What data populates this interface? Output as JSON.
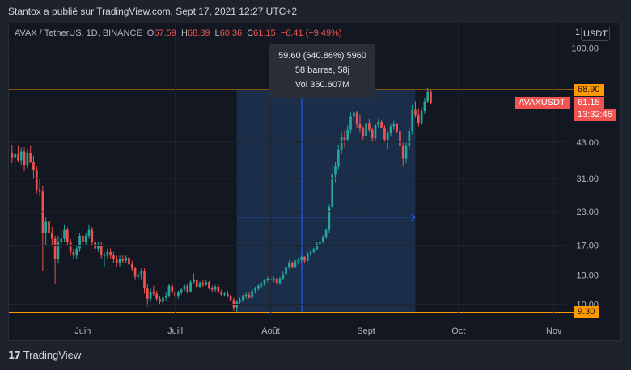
{
  "header": {
    "author_line": "Stantox a  publié sur TradingView.com, Sept 17, 2021 12:27 UTC+2"
  },
  "legend": {
    "symbol": "AVAX / TetherUS, 1D, BINANCE",
    "open_label": "O",
    "open": "67.59",
    "high_label": "H",
    "high": "68.89",
    "low_label": "L",
    "low": "60.36",
    "close_label": "C",
    "close": "61.15",
    "change": "−6.41 (−9.49%)"
  },
  "toolbar": {
    "one_label": "1",
    "currency_label": "USDT"
  },
  "measure_tooltip": {
    "line1": "59.60 (640.86%) 5960",
    "line2": "58 barres, 58j",
    "line3": "Vol 360.607M"
  },
  "price_tags": {
    "resistance": "68.90",
    "support": "9.30",
    "symbol_tag": "AVAXUSDT",
    "last_price": "61.15",
    "countdown": "13:32:46"
  },
  "footer": {
    "brand": "TradingView",
    "logo_icon": "tradingview-logo-icon"
  },
  "colors": {
    "background": "#131722",
    "up": "#26a69a",
    "down": "#ef5350",
    "level_line": "#ff9800",
    "measure_fill": "#1d3350",
    "measure_arrow": "#2962ff"
  },
  "chart_data": {
    "type": "candlestick",
    "y_scale": "log",
    "y_ticks": [
      100.0,
      68.9,
      43.0,
      31.0,
      23.0,
      17.0,
      13.0,
      10.0,
      9.3
    ],
    "y_tick_labels": [
      "100.00",
      "68.90",
      "43.00",
      "31.00",
      "23.00",
      "17.00",
      "13.00",
      "10.00",
      "9.30"
    ],
    "x_tick_labels": [
      "Juin",
      "Juill",
      "Août",
      "Sept",
      "Oct",
      "Nov"
    ],
    "x_tick_dates": [
      "2021-06-01",
      "2021-07-01",
      "2021-08-01",
      "2021-09-01",
      "2021-10-01",
      "2021-11-01"
    ],
    "x_range": [
      "2021-05-08",
      "2021-11-05"
    ],
    "y_range": [
      9.0,
      125.0
    ],
    "horizontal_levels": [
      68.9,
      9.3
    ],
    "measure": {
      "start": "2021-07-21",
      "end": "2021-09-17",
      "from_price": 9.3,
      "to_price": 68.9
    },
    "candles": [
      {
        "date": "2021-05-09",
        "o": 39.0,
        "h": 42.0,
        "l": 35.5,
        "c": 37.5
      },
      {
        "date": "2021-05-10",
        "o": 37.5,
        "h": 40.0,
        "l": 34.0,
        "c": 38.5
      },
      {
        "date": "2021-05-11",
        "o": 38.5,
        "h": 41.5,
        "l": 36.0,
        "c": 36.5
      },
      {
        "date": "2021-05-12",
        "o": 36.5,
        "h": 41.0,
        "l": 35.0,
        "c": 39.5
      },
      {
        "date": "2021-05-13",
        "o": 39.5,
        "h": 41.0,
        "l": 33.0,
        "c": 35.0
      },
      {
        "date": "2021-05-14",
        "o": 35.0,
        "h": 40.5,
        "l": 34.0,
        "c": 39.0
      },
      {
        "date": "2021-05-15",
        "o": 39.0,
        "h": 41.5,
        "l": 35.5,
        "c": 36.0
      },
      {
        "date": "2021-05-16",
        "o": 36.0,
        "h": 38.0,
        "l": 31.0,
        "c": 33.5
      },
      {
        "date": "2021-05-17",
        "o": 33.5,
        "h": 34.5,
        "l": 27.0,
        "c": 28.0
      },
      {
        "date": "2021-05-18",
        "o": 28.0,
        "h": 31.0,
        "l": 26.5,
        "c": 27.5
      },
      {
        "date": "2021-05-19",
        "o": 27.5,
        "h": 29.0,
        "l": 13.5,
        "c": 19.0
      },
      {
        "date": "2021-05-20",
        "o": 19.0,
        "h": 22.0,
        "l": 17.0,
        "c": 21.0
      },
      {
        "date": "2021-05-21",
        "o": 21.0,
        "h": 22.5,
        "l": 17.5,
        "c": 19.0
      },
      {
        "date": "2021-05-22",
        "o": 19.0,
        "h": 20.0,
        "l": 17.0,
        "c": 18.0
      },
      {
        "date": "2021-05-23",
        "o": 18.0,
        "h": 18.5,
        "l": 12.0,
        "c": 15.0
      },
      {
        "date": "2021-05-24",
        "o": 15.0,
        "h": 18.5,
        "l": 14.5,
        "c": 17.5
      },
      {
        "date": "2021-05-25",
        "o": 17.5,
        "h": 19.5,
        "l": 16.5,
        "c": 18.0
      },
      {
        "date": "2021-05-26",
        "o": 18.0,
        "h": 20.5,
        "l": 17.5,
        "c": 19.5
      },
      {
        "date": "2021-05-27",
        "o": 19.5,
        "h": 20.0,
        "l": 17.0,
        "c": 17.5
      },
      {
        "date": "2021-05-28",
        "o": 17.5,
        "h": 18.0,
        "l": 15.5,
        "c": 16.0
      },
      {
        "date": "2021-05-29",
        "o": 16.0,
        "h": 16.5,
        "l": 15.0,
        "c": 15.5
      },
      {
        "date": "2021-05-30",
        "o": 15.5,
        "h": 17.0,
        "l": 15.0,
        "c": 16.5
      },
      {
        "date": "2021-05-31",
        "o": 16.5,
        "h": 19.0,
        "l": 16.0,
        "c": 18.5
      },
      {
        "date": "2021-06-01",
        "o": 18.5,
        "h": 19.0,
        "l": 17.0,
        "c": 17.5
      },
      {
        "date": "2021-06-02",
        "o": 17.5,
        "h": 19.0,
        "l": 17.0,
        "c": 18.5
      },
      {
        "date": "2021-06-03",
        "o": 18.5,
        "h": 20.5,
        "l": 18.0,
        "c": 19.5
      },
      {
        "date": "2021-06-04",
        "o": 19.5,
        "h": 20.0,
        "l": 17.0,
        "c": 17.5
      },
      {
        "date": "2021-06-05",
        "o": 17.5,
        "h": 18.0,
        "l": 16.0,
        "c": 16.5
      },
      {
        "date": "2021-06-06",
        "o": 16.5,
        "h": 17.5,
        "l": 16.0,
        "c": 17.0
      },
      {
        "date": "2021-06-07",
        "o": 17.0,
        "h": 17.5,
        "l": 15.0,
        "c": 15.5
      },
      {
        "date": "2021-06-08",
        "o": 15.5,
        "h": 16.0,
        "l": 14.0,
        "c": 15.5
      },
      {
        "date": "2021-06-09",
        "o": 15.5,
        "h": 16.5,
        "l": 15.0,
        "c": 16.0
      },
      {
        "date": "2021-06-10",
        "o": 16.0,
        "h": 16.5,
        "l": 15.0,
        "c": 15.5
      },
      {
        "date": "2021-06-11",
        "o": 15.5,
        "h": 16.0,
        "l": 14.5,
        "c": 15.0
      },
      {
        "date": "2021-06-12",
        "o": 15.0,
        "h": 15.5,
        "l": 14.0,
        "c": 14.5
      },
      {
        "date": "2021-06-13",
        "o": 14.5,
        "h": 15.5,
        "l": 14.0,
        "c": 15.0
      },
      {
        "date": "2021-06-14",
        "o": 15.0,
        "h": 15.5,
        "l": 14.5,
        "c": 14.8
      },
      {
        "date": "2021-06-15",
        "o": 14.8,
        "h": 15.5,
        "l": 14.5,
        "c": 15.2
      },
      {
        "date": "2021-06-16",
        "o": 15.2,
        "h": 15.5,
        "l": 14.0,
        "c": 14.3
      },
      {
        "date": "2021-06-17",
        "o": 14.3,
        "h": 14.8,
        "l": 13.5,
        "c": 13.8
      },
      {
        "date": "2021-06-18",
        "o": 13.8,
        "h": 14.0,
        "l": 12.5,
        "c": 12.8
      },
      {
        "date": "2021-06-19",
        "o": 12.8,
        "h": 13.3,
        "l": 12.5,
        "c": 13.0
      },
      {
        "date": "2021-06-20",
        "o": 13.0,
        "h": 13.8,
        "l": 12.5,
        "c": 13.5
      },
      {
        "date": "2021-06-21",
        "o": 13.5,
        "h": 13.8,
        "l": 11.0,
        "c": 11.5
      },
      {
        "date": "2021-06-22",
        "o": 11.5,
        "h": 12.0,
        "l": 9.8,
        "c": 10.5
      },
      {
        "date": "2021-06-23",
        "o": 10.5,
        "h": 11.5,
        "l": 10.2,
        "c": 11.2
      },
      {
        "date": "2021-06-24",
        "o": 11.2,
        "h": 11.8,
        "l": 10.8,
        "c": 11.0
      },
      {
        "date": "2021-06-25",
        "o": 11.0,
        "h": 11.3,
        "l": 10.3,
        "c": 10.5
      },
      {
        "date": "2021-06-26",
        "o": 10.5,
        "h": 10.8,
        "l": 10.0,
        "c": 10.2
      },
      {
        "date": "2021-06-27",
        "o": 10.2,
        "h": 10.8,
        "l": 10.0,
        "c": 10.6
      },
      {
        "date": "2021-06-28",
        "o": 10.6,
        "h": 11.2,
        "l": 10.3,
        "c": 10.8
      },
      {
        "date": "2021-06-29",
        "o": 10.8,
        "h": 12.0,
        "l": 10.6,
        "c": 11.8
      },
      {
        "date": "2021-06-30",
        "o": 11.8,
        "h": 12.2,
        "l": 10.9,
        "c": 11.2
      },
      {
        "date": "2021-07-01",
        "o": 11.2,
        "h": 11.5,
        "l": 10.5,
        "c": 10.7
      },
      {
        "date": "2021-07-02",
        "o": 10.7,
        "h": 11.3,
        "l": 10.5,
        "c": 11.1
      },
      {
        "date": "2021-07-03",
        "o": 11.1,
        "h": 11.6,
        "l": 10.9,
        "c": 11.4
      },
      {
        "date": "2021-07-04",
        "o": 11.4,
        "h": 12.0,
        "l": 11.2,
        "c": 11.8
      },
      {
        "date": "2021-07-05",
        "o": 11.8,
        "h": 12.0,
        "l": 11.0,
        "c": 11.2
      },
      {
        "date": "2021-07-06",
        "o": 11.2,
        "h": 12.5,
        "l": 11.1,
        "c": 12.2
      },
      {
        "date": "2021-07-07",
        "o": 12.2,
        "h": 13.2,
        "l": 12.0,
        "c": 12.4
      },
      {
        "date": "2021-07-08",
        "o": 12.4,
        "h": 12.5,
        "l": 11.5,
        "c": 11.7
      },
      {
        "date": "2021-07-09",
        "o": 11.7,
        "h": 12.3,
        "l": 11.5,
        "c": 12.1
      },
      {
        "date": "2021-07-10",
        "o": 12.1,
        "h": 12.5,
        "l": 11.7,
        "c": 11.9
      },
      {
        "date": "2021-07-11",
        "o": 11.9,
        "h": 12.4,
        "l": 11.8,
        "c": 12.2
      },
      {
        "date": "2021-07-12",
        "o": 12.2,
        "h": 12.3,
        "l": 11.4,
        "c": 11.6
      },
      {
        "date": "2021-07-13",
        "o": 11.6,
        "h": 11.8,
        "l": 11.2,
        "c": 11.4
      },
      {
        "date": "2021-07-14",
        "o": 11.4,
        "h": 11.9,
        "l": 11.1,
        "c": 11.7
      },
      {
        "date": "2021-07-15",
        "o": 11.7,
        "h": 11.9,
        "l": 11.0,
        "c": 11.2
      },
      {
        "date": "2021-07-16",
        "o": 11.2,
        "h": 11.4,
        "l": 10.7,
        "c": 10.9
      },
      {
        "date": "2021-07-17",
        "o": 10.9,
        "h": 11.2,
        "l": 10.7,
        "c": 11.0
      },
      {
        "date": "2021-07-18",
        "o": 11.0,
        "h": 11.3,
        "l": 10.6,
        "c": 10.8
      },
      {
        "date": "2021-07-19",
        "o": 10.8,
        "h": 10.9,
        "l": 10.2,
        "c": 10.4
      },
      {
        "date": "2021-07-20",
        "o": 10.4,
        "h": 10.6,
        "l": 9.4,
        "c": 9.7
      },
      {
        "date": "2021-07-21",
        "o": 9.7,
        "h": 10.4,
        "l": 9.3,
        "c": 10.2
      },
      {
        "date": "2021-07-22",
        "o": 10.2,
        "h": 10.6,
        "l": 10.0,
        "c": 10.4
      },
      {
        "date": "2021-07-23",
        "o": 10.4,
        "h": 10.9,
        "l": 10.2,
        "c": 10.7
      },
      {
        "date": "2021-07-24",
        "o": 10.7,
        "h": 11.1,
        "l": 10.5,
        "c": 10.9
      },
      {
        "date": "2021-07-25",
        "o": 10.9,
        "h": 11.1,
        "l": 10.5,
        "c": 10.6
      },
      {
        "date": "2021-07-26",
        "o": 10.6,
        "h": 11.6,
        "l": 10.5,
        "c": 11.3
      },
      {
        "date": "2021-07-27",
        "o": 11.3,
        "h": 11.7,
        "l": 11.0,
        "c": 11.5
      },
      {
        "date": "2021-07-28",
        "o": 11.5,
        "h": 12.0,
        "l": 11.3,
        "c": 11.8
      },
      {
        "date": "2021-07-29",
        "o": 11.8,
        "h": 12.2,
        "l": 11.5,
        "c": 11.9
      },
      {
        "date": "2021-07-30",
        "o": 11.9,
        "h": 12.6,
        "l": 11.8,
        "c": 12.4
      },
      {
        "date": "2021-07-31",
        "o": 12.4,
        "h": 12.8,
        "l": 12.2,
        "c": 12.6
      },
      {
        "date": "2021-08-01",
        "o": 12.6,
        "h": 13.0,
        "l": 12.3,
        "c": 12.5
      },
      {
        "date": "2021-08-02",
        "o": 12.5,
        "h": 12.8,
        "l": 12.2,
        "c": 12.6
      },
      {
        "date": "2021-08-03",
        "o": 12.6,
        "h": 12.7,
        "l": 11.9,
        "c": 12.1
      },
      {
        "date": "2021-08-04",
        "o": 12.1,
        "h": 12.8,
        "l": 11.9,
        "c": 12.6
      },
      {
        "date": "2021-08-05",
        "o": 12.6,
        "h": 13.4,
        "l": 12.4,
        "c": 13.1
      },
      {
        "date": "2021-08-06",
        "o": 13.1,
        "h": 14.2,
        "l": 12.9,
        "c": 13.9
      },
      {
        "date": "2021-08-07",
        "o": 13.9,
        "h": 14.8,
        "l": 13.7,
        "c": 14.5
      },
      {
        "date": "2021-08-08",
        "o": 14.5,
        "h": 14.7,
        "l": 13.8,
        "c": 14.0
      },
      {
        "date": "2021-08-09",
        "o": 14.0,
        "h": 14.9,
        "l": 13.8,
        "c": 14.7
      },
      {
        "date": "2021-08-10",
        "o": 14.7,
        "h": 15.2,
        "l": 14.3,
        "c": 14.9
      },
      {
        "date": "2021-08-11",
        "o": 14.9,
        "h": 15.5,
        "l": 14.6,
        "c": 15.3
      },
      {
        "date": "2021-08-12",
        "o": 15.3,
        "h": 15.4,
        "l": 14.5,
        "c": 14.8
      },
      {
        "date": "2021-08-13",
        "o": 14.8,
        "h": 16.0,
        "l": 14.7,
        "c": 15.8
      },
      {
        "date": "2021-08-14",
        "o": 15.8,
        "h": 16.3,
        "l": 15.4,
        "c": 16.0
      },
      {
        "date": "2021-08-15",
        "o": 16.0,
        "h": 16.6,
        "l": 15.8,
        "c": 16.4
      },
      {
        "date": "2021-08-16",
        "o": 16.4,
        "h": 17.5,
        "l": 16.2,
        "c": 17.2
      },
      {
        "date": "2021-08-17",
        "o": 17.2,
        "h": 18.0,
        "l": 16.8,
        "c": 17.5
      },
      {
        "date": "2021-08-18",
        "o": 17.5,
        "h": 18.6,
        "l": 17.3,
        "c": 18.3
      },
      {
        "date": "2021-08-19",
        "o": 18.3,
        "h": 19.8,
        "l": 18.0,
        "c": 19.5
      },
      {
        "date": "2021-08-20",
        "o": 19.5,
        "h": 24.5,
        "l": 19.0,
        "c": 24.0
      },
      {
        "date": "2021-08-21",
        "o": 24.0,
        "h": 35.0,
        "l": 23.5,
        "c": 32.0
      },
      {
        "date": "2021-08-22",
        "o": 32.0,
        "h": 36.0,
        "l": 30.0,
        "c": 34.5
      },
      {
        "date": "2021-08-23",
        "o": 34.5,
        "h": 42.0,
        "l": 33.5,
        "c": 40.0
      },
      {
        "date": "2021-08-24",
        "o": 40.0,
        "h": 47.0,
        "l": 38.5,
        "c": 45.0
      },
      {
        "date": "2021-08-25",
        "o": 45.0,
        "h": 47.5,
        "l": 41.0,
        "c": 44.0
      },
      {
        "date": "2021-08-26",
        "o": 44.0,
        "h": 50.0,
        "l": 43.0,
        "c": 48.0
      },
      {
        "date": "2021-08-27",
        "o": 48.0,
        "h": 56.0,
        "l": 46.5,
        "c": 54.0
      },
      {
        "date": "2021-08-28",
        "o": 54.0,
        "h": 58.5,
        "l": 52.0,
        "c": 56.0
      },
      {
        "date": "2021-08-29",
        "o": 56.0,
        "h": 57.0,
        "l": 49.0,
        "c": 50.5
      },
      {
        "date": "2021-08-30",
        "o": 50.5,
        "h": 55.0,
        "l": 47.0,
        "c": 48.5
      },
      {
        "date": "2021-08-31",
        "o": 48.5,
        "h": 49.5,
        "l": 44.0,
        "c": 45.5
      },
      {
        "date": "2021-09-01",
        "o": 45.5,
        "h": 52.0,
        "l": 44.5,
        "c": 51.0
      },
      {
        "date": "2021-09-02",
        "o": 51.0,
        "h": 53.0,
        "l": 47.0,
        "c": 48.0
      },
      {
        "date": "2021-09-03",
        "o": 48.0,
        "h": 49.0,
        "l": 43.0,
        "c": 44.5
      },
      {
        "date": "2021-09-04",
        "o": 44.5,
        "h": 51.0,
        "l": 43.5,
        "c": 50.0
      },
      {
        "date": "2021-09-05",
        "o": 50.0,
        "h": 53.0,
        "l": 48.5,
        "c": 51.5
      },
      {
        "date": "2021-09-06",
        "o": 51.5,
        "h": 52.5,
        "l": 48.5,
        "c": 49.0
      },
      {
        "date": "2021-09-07",
        "o": 49.0,
        "h": 50.0,
        "l": 43.0,
        "c": 44.0
      },
      {
        "date": "2021-09-08",
        "o": 44.0,
        "h": 47.5,
        "l": 40.5,
        "c": 46.5
      },
      {
        "date": "2021-09-09",
        "o": 46.5,
        "h": 50.5,
        "l": 45.5,
        "c": 49.5
      },
      {
        "date": "2021-09-10",
        "o": 49.5,
        "h": 52.0,
        "l": 48.0,
        "c": 50.5
      },
      {
        "date": "2021-09-11",
        "o": 50.5,
        "h": 51.0,
        "l": 46.5,
        "c": 47.5
      },
      {
        "date": "2021-09-12",
        "o": 47.5,
        "h": 48.5,
        "l": 40.0,
        "c": 41.5
      },
      {
        "date": "2021-09-13",
        "o": 41.5,
        "h": 43.0,
        "l": 34.5,
        "c": 37.0
      },
      {
        "date": "2021-09-14",
        "o": 37.0,
        "h": 43.0,
        "l": 35.5,
        "c": 41.5
      },
      {
        "date": "2021-09-15",
        "o": 41.5,
        "h": 49.0,
        "l": 40.5,
        "c": 47.5
      },
      {
        "date": "2021-09-16",
        "o": 47.5,
        "h": 60.0,
        "l": 46.0,
        "c": 57.5
      },
      {
        "date": "2021-09-17",
        "o": 57.5,
        "h": 62.0,
        "l": 53.5,
        "c": 55.0
      },
      {
        "date": "2021-09-18",
        "o": 55.0,
        "h": 58.0,
        "l": 49.5,
        "c": 51.0
      },
      {
        "date": "2021-09-19",
        "o": 51.0,
        "h": 58.5,
        "l": 50.0,
        "c": 57.0
      },
      {
        "date": "2021-09-20",
        "o": 57.0,
        "h": 64.0,
        "l": 55.5,
        "c": 62.0
      },
      {
        "date": "2021-09-21",
        "o": 62.0,
        "h": 70.0,
        "l": 61.0,
        "c": 67.6
      },
      {
        "date": "2021-09-22",
        "o": 67.59,
        "h": 68.89,
        "l": 60.36,
        "c": 61.15
      }
    ]
  }
}
